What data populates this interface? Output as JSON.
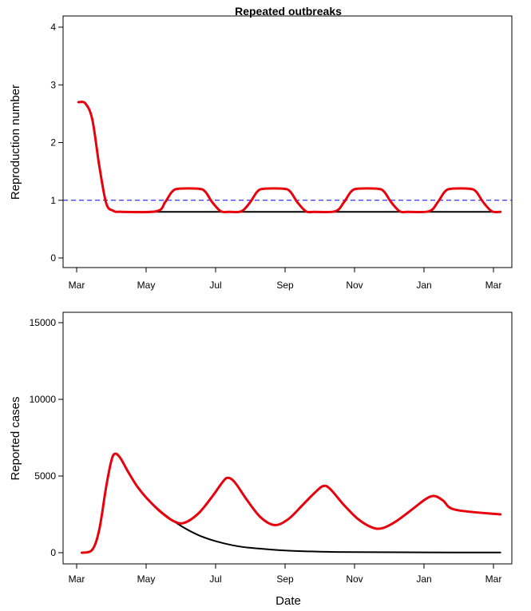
{
  "chart_data": [
    {
      "type": "line",
      "title": "Repeated outbreaks",
      "ylabel": "Reproduction number",
      "xlabel": "",
      "x_ticks": [
        "Mar",
        "May",
        "Jul",
        "Sep",
        "Nov",
        "Jan",
        "Mar"
      ],
      "ylim": [
        0,
        4
      ],
      "y_ticks": [
        "0",
        "1",
        "2",
        "3",
        "4"
      ],
      "reference_line": {
        "y": 1,
        "style": "dashed",
        "color": "#0000ff"
      },
      "series": [
        {
          "color": "#000000",
          "points": [
            [
              0.05,
              2.7
            ],
            [
              0.25,
              2.68
            ],
            [
              0.45,
              2.4
            ],
            [
              0.65,
              1.6
            ],
            [
              0.85,
              0.95
            ],
            [
              1.05,
              0.82
            ],
            [
              1.3,
              0.8
            ],
            [
              2.0,
              0.8
            ],
            [
              4.0,
              0.8
            ],
            [
              6.0,
              0.8
            ],
            [
              8.0,
              0.8
            ],
            [
              10.0,
              0.8
            ],
            [
              12.2,
              0.8
            ]
          ]
        },
        {
          "color": "#e8000b",
          "points": [
            [
              0.05,
              2.7
            ],
            [
              0.25,
              2.68
            ],
            [
              0.45,
              2.4
            ],
            [
              0.65,
              1.6
            ],
            [
              0.85,
              0.95
            ],
            [
              1.05,
              0.82
            ],
            [
              1.3,
              0.8
            ],
            [
              2.3,
              0.81
            ],
            [
              2.55,
              0.97
            ],
            [
              2.75,
              1.15
            ],
            [
              2.95,
              1.2
            ],
            [
              3.5,
              1.2
            ],
            [
              3.7,
              1.15
            ],
            [
              3.9,
              0.97
            ],
            [
              4.15,
              0.81
            ],
            [
              4.4,
              0.8
            ],
            [
              4.75,
              0.81
            ],
            [
              5.0,
              0.97
            ],
            [
              5.2,
              1.15
            ],
            [
              5.4,
              1.2
            ],
            [
              5.95,
              1.2
            ],
            [
              6.15,
              1.15
            ],
            [
              6.35,
              0.97
            ],
            [
              6.6,
              0.81
            ],
            [
              6.85,
              0.8
            ],
            [
              7.45,
              0.81
            ],
            [
              7.7,
              0.97
            ],
            [
              7.9,
              1.15
            ],
            [
              8.1,
              1.2
            ],
            [
              8.65,
              1.2
            ],
            [
              8.85,
              1.15
            ],
            [
              9.05,
              0.97
            ],
            [
              9.3,
              0.81
            ],
            [
              9.55,
              0.8
            ],
            [
              10.15,
              0.81
            ],
            [
              10.4,
              0.97
            ],
            [
              10.6,
              1.15
            ],
            [
              10.8,
              1.2
            ],
            [
              11.3,
              1.2
            ],
            [
              11.5,
              1.15
            ],
            [
              11.7,
              0.97
            ],
            [
              11.95,
              0.81
            ],
            [
              12.2,
              0.8
            ]
          ]
        }
      ]
    },
    {
      "type": "line",
      "title": "",
      "ylabel": "Reported cases",
      "xlabel": "Date",
      "x_ticks": [
        "Mar",
        "May",
        "Jul",
        "Sep",
        "Nov",
        "Jan",
        "Mar"
      ],
      "ylim": [
        0,
        15000
      ],
      "y_ticks": [
        "0",
        "5000",
        "10000",
        "15000"
      ],
      "series": [
        {
          "color": "#000000",
          "points": [
            [
              0.15,
              0
            ],
            [
              0.45,
              200
            ],
            [
              0.65,
              1500
            ],
            [
              0.85,
              4300
            ],
            [
              1.0,
              6000
            ],
            [
              1.1,
              6450
            ],
            [
              1.25,
              6200
            ],
            [
              1.5,
              5200
            ],
            [
              1.75,
              4300
            ],
            [
              2.0,
              3600
            ],
            [
              2.5,
              2550
            ],
            [
              3.0,
              1750
            ],
            [
              3.5,
              1150
            ],
            [
              4.0,
              750
            ],
            [
              4.5,
              480
            ],
            [
              5.0,
              320
            ],
            [
              6.0,
              140
            ],
            [
              7.0,
              70
            ],
            [
              8.0,
              40
            ],
            [
              10.0,
              20
            ],
            [
              12.2,
              10
            ]
          ]
        },
        {
          "color": "#e8000b",
          "points": [
            [
              0.15,
              0
            ],
            [
              0.45,
              200
            ],
            [
              0.65,
              1500
            ],
            [
              0.85,
              4300
            ],
            [
              1.0,
              6000
            ],
            [
              1.1,
              6450
            ],
            [
              1.25,
              6200
            ],
            [
              1.5,
              5200
            ],
            [
              1.75,
              4300
            ],
            [
              2.0,
              3600
            ],
            [
              2.4,
              2700
            ],
            [
              2.8,
              2050
            ],
            [
              3.1,
              1950
            ],
            [
              3.5,
              2550
            ],
            [
              3.9,
              3650
            ],
            [
              4.2,
              4600
            ],
            [
              4.35,
              4880
            ],
            [
              4.55,
              4600
            ],
            [
              4.9,
              3450
            ],
            [
              5.3,
              2300
            ],
            [
              5.7,
              1800
            ],
            [
              6.1,
              2200
            ],
            [
              6.5,
              3100
            ],
            [
              6.85,
              3900
            ],
            [
              7.1,
              4350
            ],
            [
              7.3,
              4150
            ],
            [
              7.7,
              3100
            ],
            [
              8.1,
              2200
            ],
            [
              8.5,
              1650
            ],
            [
              8.8,
              1600
            ],
            [
              9.2,
              2050
            ],
            [
              9.7,
              2900
            ],
            [
              10.05,
              3500
            ],
            [
              10.3,
              3700
            ],
            [
              10.55,
              3400
            ],
            [
              10.9,
              2800
            ],
            [
              12.2,
              2500
            ]
          ]
        }
      ]
    }
  ]
}
